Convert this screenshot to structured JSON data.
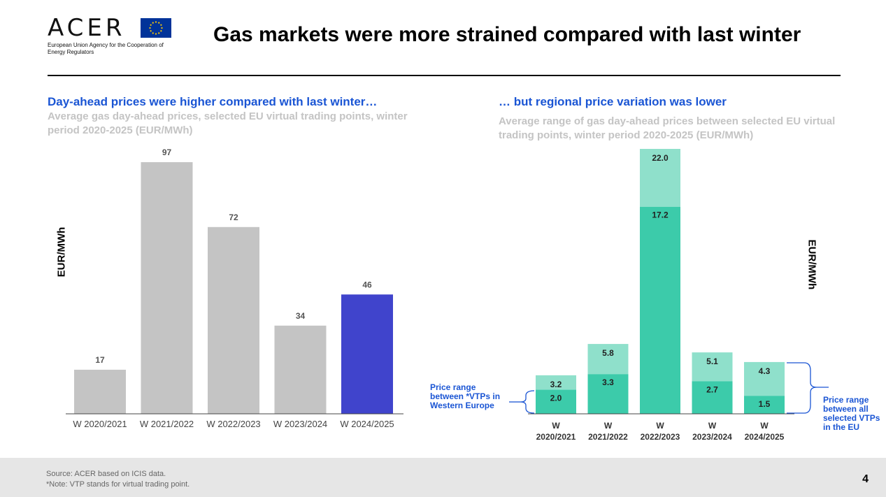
{
  "header": {
    "logo_word": "ACER",
    "logo_subtitle": "European Union Agency for the Cooperation of Energy Regulators",
    "title": "Gas markets were more strained compared with last winter"
  },
  "left_panel": {
    "title": "Day-ahead prices were higher compared with last winter…",
    "subtitle": "Average gas day-ahead prices, selected EU virtual trading points, winter period 2020-2025 (EUR/MWh)"
  },
  "right_panel": {
    "title": "… but regional price variation was lower",
    "subtitle": "Average range of gas day-ahead prices between selected EU virtual trading points, winter period 2020-2025 (EUR/MWh)",
    "bracket_left": "Price range between *VTPs in Western Europe",
    "bracket_right": "Price range between all selected VTPs in the EU"
  },
  "chart_data": [
    {
      "type": "bar",
      "categories": [
        "W 2020/2021",
        "W 2021/2022",
        "W 2022/2023",
        "W 2023/2024",
        "W 2024/2025"
      ],
      "values": [
        17,
        97,
        72,
        34,
        46
      ],
      "labels": [
        "17",
        "97",
        "72",
        "34",
        "46"
      ],
      "ylabel": "EUR/MWh",
      "ylim": [
        0,
        100
      ],
      "colors": [
        "#c4c4c4",
        "#c4c4c4",
        "#c4c4c4",
        "#c4c4c4",
        "#4044cc"
      ],
      "grid": false
    },
    {
      "type": "bar",
      "stacked": true,
      "categories": [
        "W 2020/2021",
        "W 2021/2022",
        "W 2022/2023",
        "W 2023/2024",
        "W 2024/2025"
      ],
      "series": [
        {
          "values": [
            2.0,
            3.3,
            17.2,
            2.7,
            1.5
          ],
          "labels": [
            "2.0",
            "3.3",
            "17.2",
            "2.7",
            "1.5"
          ],
          "color": "#3ccbaa"
        },
        {
          "values": [
            1.2,
            2.5,
            4.8,
            2.4,
            2.8
          ],
          "labels": [
            "3.2",
            "5.8",
            "22.0",
            "5.1",
            "4.3"
          ],
          "color": "#8fe0cb"
        }
      ],
      "totals": [
        3.2,
        5.8,
        22.0,
        5.1,
        4.3
      ],
      "ylabel": "EUR/MWh",
      "ylim": [
        0,
        22
      ],
      "grid": false
    }
  ],
  "footer": {
    "source": "Source: ACER based on ICIS data.",
    "note": "*Note: VTP stands for virtual trading point.",
    "page_number": "4"
  }
}
